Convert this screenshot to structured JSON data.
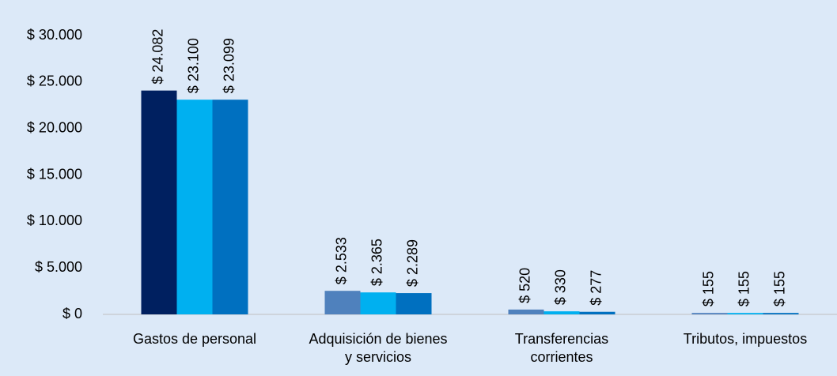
{
  "chart_data": {
    "type": "bar",
    "categories": [
      "Gastos de personal",
      "Adquisición de bienes y servicios",
      "Transferencias corrientes",
      "Tributos, impuestos"
    ],
    "series": [
      {
        "color": "#4f81bd",
        "point_colors": [
          "#002060",
          "#4f81bd",
          "#4f81bd",
          "#4f81bd"
        ],
        "values": [
          24082,
          2533,
          520,
          155
        ],
        "value_labels": [
          "$ 24.082",
          "$ 2.533",
          "$ 520",
          "$ 155"
        ]
      },
      {
        "color": "#00b0f0",
        "values": [
          23100,
          2365,
          330,
          155
        ],
        "value_labels": [
          "$ 23.100",
          "$ 2.365",
          "$ 330",
          "$ 155"
        ]
      },
      {
        "color": "#0070c0",
        "values": [
          23099,
          2289,
          277,
          155
        ],
        "value_labels": [
          "$ 23.099",
          "$ 2.289",
          "$ 277",
          "$ 155"
        ]
      }
    ],
    "ylim": [
      0,
      30000
    ],
    "yticks": [
      {
        "value": 0,
        "label": "$ 0"
      },
      {
        "value": 5000,
        "label": "$ 5.000"
      },
      {
        "value": 10000,
        "label": "$ 10.000"
      },
      {
        "value": 15000,
        "label": "$ 15.000"
      },
      {
        "value": 20000,
        "label": "$ 20.000"
      },
      {
        "value": 25000,
        "label": "$ 25.000"
      },
      {
        "value": 30000,
        "label": "$ 30.000"
      }
    ],
    "grid": false
  }
}
